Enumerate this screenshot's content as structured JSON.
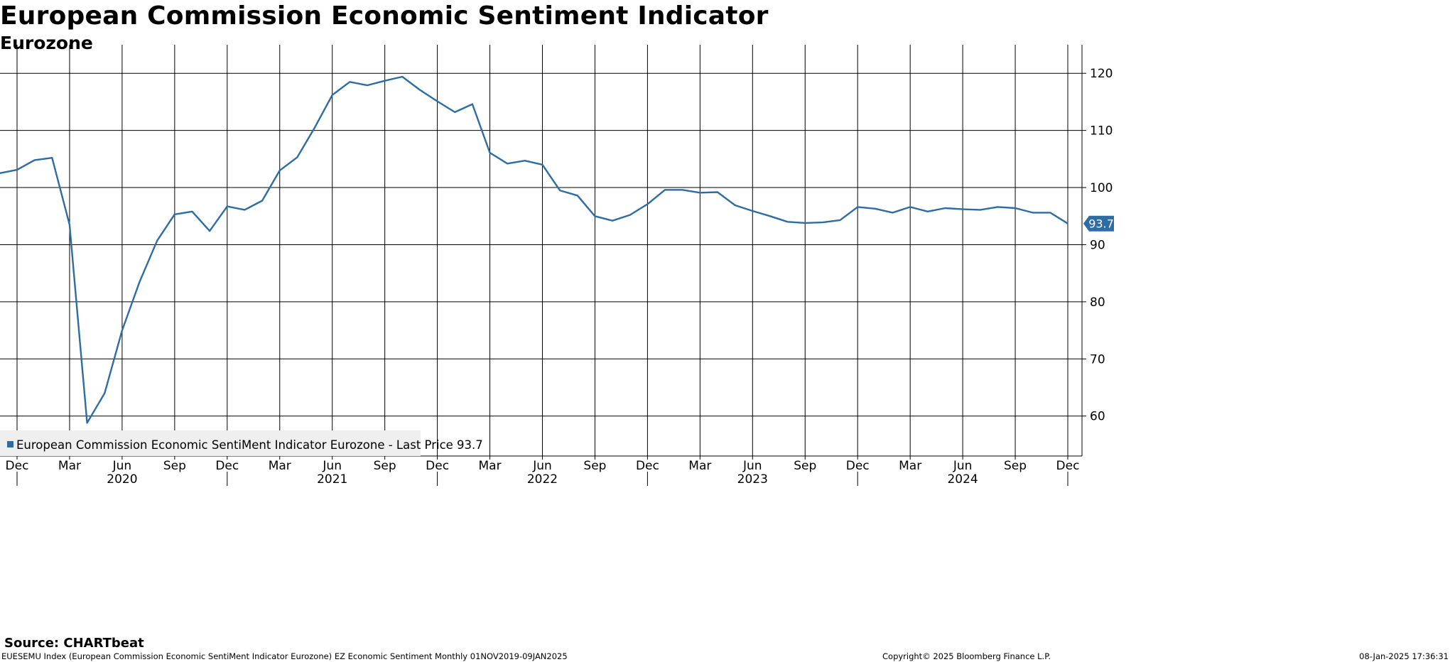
{
  "chart_data": {
    "type": "line",
    "title": "European Commission Economic Sentiment Indicator",
    "subtitle": "Eurozone",
    "x_start": "2019-11",
    "x_end": "2024-12",
    "x": [
      "2019-11",
      "2019-12",
      "2020-01",
      "2020-02",
      "2020-03",
      "2020-04",
      "2020-05",
      "2020-06",
      "2020-07",
      "2020-08",
      "2020-09",
      "2020-10",
      "2020-11",
      "2020-12",
      "2021-01",
      "2021-02",
      "2021-03",
      "2021-04",
      "2021-05",
      "2021-06",
      "2021-07",
      "2021-08",
      "2021-09",
      "2021-10",
      "2021-11",
      "2021-12",
      "2022-01",
      "2022-02",
      "2022-03",
      "2022-04",
      "2022-05",
      "2022-06",
      "2022-07",
      "2022-08",
      "2022-09",
      "2022-10",
      "2022-11",
      "2022-12",
      "2023-01",
      "2023-02",
      "2023-03",
      "2023-04",
      "2023-05",
      "2023-06",
      "2023-07",
      "2023-08",
      "2023-09",
      "2023-10",
      "2023-11",
      "2023-12",
      "2024-01",
      "2024-02",
      "2024-03",
      "2024-04",
      "2024-05",
      "2024-06",
      "2024-07",
      "2024-08",
      "2024-09",
      "2024-10",
      "2024-11",
      "2024-12"
    ],
    "series": [
      {
        "name": "European Commission Economic SentiMent Indicator Eurozone",
        "color": "#2e6ca4",
        "values": [
          102.5,
          103.1,
          104.8,
          105.2,
          93.5,
          58.8,
          64.0,
          75.0,
          83.5,
          90.7,
          95.3,
          95.8,
          92.4,
          96.7,
          96.1,
          97.7,
          103.0,
          105.3,
          110.5,
          116.2,
          118.5,
          117.9,
          118.7,
          119.4,
          117.1,
          115.1,
          113.2,
          114.6,
          106.1,
          104.2,
          104.7,
          104.0,
          99.5,
          98.6,
          95.0,
          94.2,
          95.2,
          97.1,
          99.6,
          99.6,
          99.1,
          99.2,
          96.9,
          95.9,
          95.0,
          94.0,
          93.8,
          93.9,
          94.3,
          96.6,
          96.3,
          95.6,
          96.6,
          95.8,
          96.4,
          96.2,
          96.1,
          96.6,
          96.4,
          95.6,
          95.6,
          93.7
        ]
      }
    ],
    "ylim": [
      53,
      125
    ],
    "yticks": [
      60,
      70,
      80,
      90,
      100,
      110,
      120
    ],
    "y_axis_side": "right",
    "month_ticks": [
      {
        "label": "Dec",
        "date": "2019-12"
      },
      {
        "label": "Mar",
        "date": "2020-03"
      },
      {
        "label": "Jun",
        "date": "2020-06"
      },
      {
        "label": "Sep",
        "date": "2020-09"
      },
      {
        "label": "Dec",
        "date": "2020-12"
      },
      {
        "label": "Mar",
        "date": "2021-03"
      },
      {
        "label": "Jun",
        "date": "2021-06"
      },
      {
        "label": "Sep",
        "date": "2021-09"
      },
      {
        "label": "Dec",
        "date": "2021-12"
      },
      {
        "label": "Mar",
        "date": "2022-03"
      },
      {
        "label": "Jun",
        "date": "2022-06"
      },
      {
        "label": "Sep",
        "date": "2022-09"
      },
      {
        "label": "Dec",
        "date": "2022-12"
      },
      {
        "label": "Mar",
        "date": "2023-03"
      },
      {
        "label": "Jun",
        "date": "2023-06"
      },
      {
        "label": "Sep",
        "date": "2023-09"
      },
      {
        "label": "Dec",
        "date": "2023-12"
      },
      {
        "label": "Mar",
        "date": "2024-03"
      },
      {
        "label": "Jun",
        "date": "2024-06"
      },
      {
        "label": "Sep",
        "date": "2024-09"
      },
      {
        "label": "Dec",
        "date": "2024-12"
      }
    ],
    "year_labels": [
      {
        "label": "2020",
        "date": "2020-06"
      },
      {
        "label": "2021",
        "date": "2021-06"
      },
      {
        "label": "2022",
        "date": "2022-06"
      },
      {
        "label": "2023",
        "date": "2023-06"
      },
      {
        "label": "2024",
        "date": "2024-06"
      }
    ],
    "year_boundaries": [
      "2019-12",
      "2020-12",
      "2021-12",
      "2022-12",
      "2023-12",
      "2024-12"
    ],
    "legend": {
      "text": "European Commission Economic SentiMent Indicator Eurozone - Last Price 93.7",
      "placement": "bottom-left"
    },
    "last_value_label": "93.7",
    "grid": true
  },
  "footer": {
    "source": "Source: CHARTbeat",
    "info": "EUESEMU Index (European Commission Economic SentiMent Indicator Eurozone) EZ Economic Sentiment  Monthly 01NOV2019-09JAN2025",
    "copyright": "Copyright© 2025 Bloomberg Finance L.P.",
    "timestamp": "08-Jan-2025 17:36:31"
  }
}
